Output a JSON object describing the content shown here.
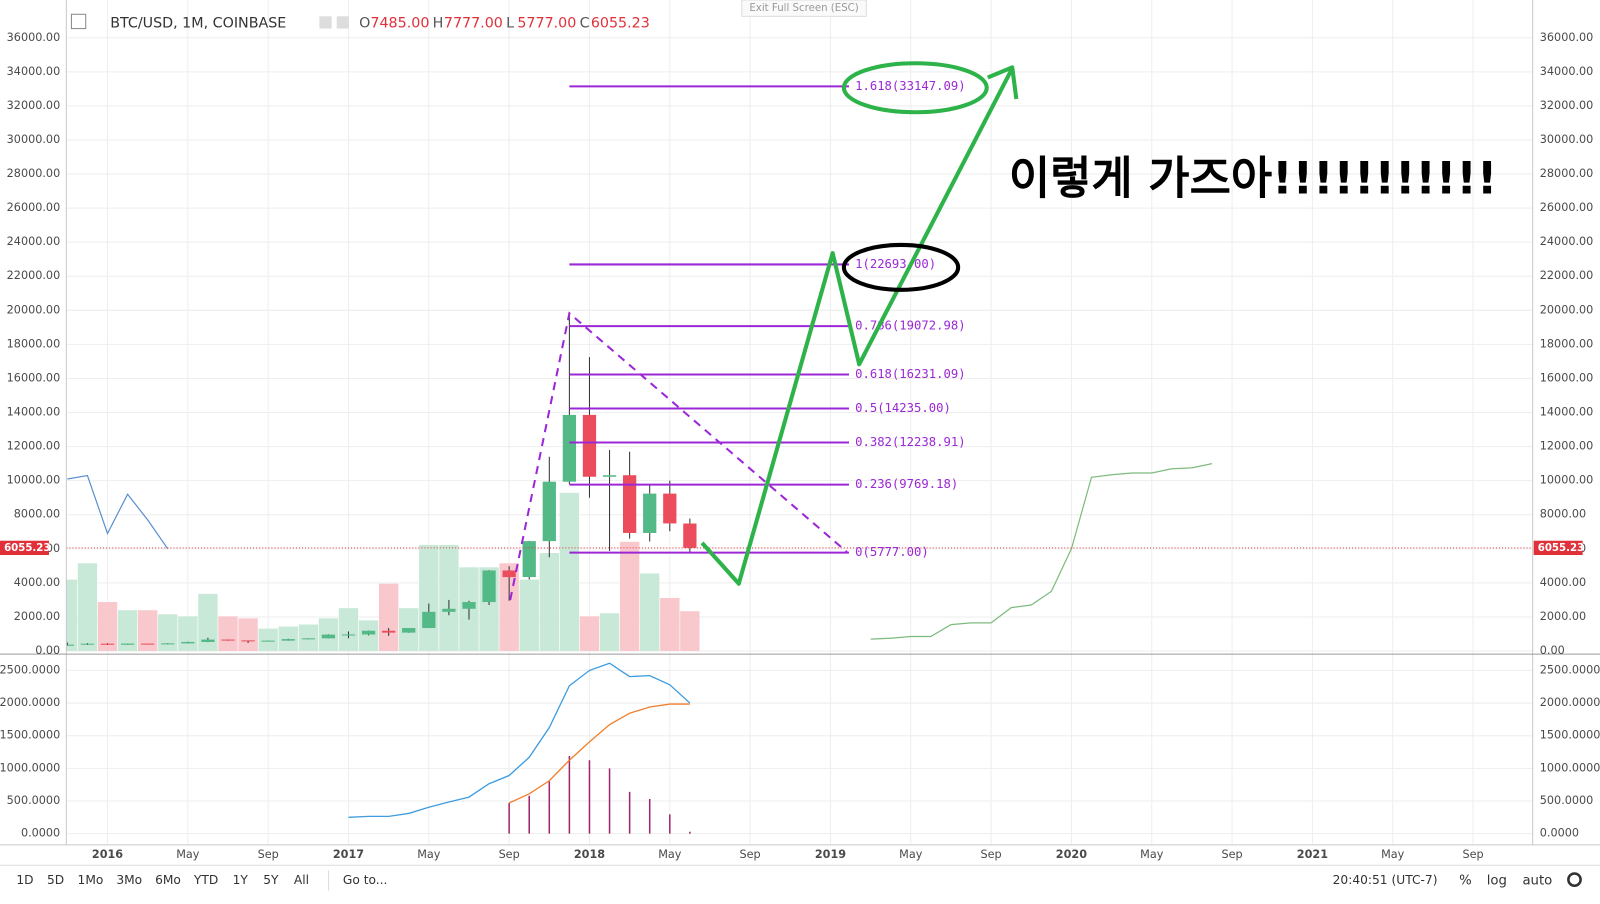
{
  "header": {
    "symbol": "BTC/USD, 1M, COINBASE",
    "ohlc": [
      {
        "key": "O",
        "value": "7485.00"
      },
      {
        "key": "H",
        "value": "7777.00"
      },
      {
        "key": "L",
        "value": "5777.00"
      },
      {
        "key": "C",
        "value": "6055.23"
      }
    ]
  },
  "exit_fullscreen": "Exit Full Screen (ESC)",
  "annotation": "이렇게 가즈아!!!!!!!!!!!",
  "time_axis_labels": [
    "2016",
    "May",
    "Sep",
    "2017",
    "May",
    "Sep",
    "2018",
    "May",
    "Sep",
    "2019",
    "May",
    "Sep",
    "2020",
    "May",
    "Sep",
    "2021",
    "May",
    "Sep"
  ],
  "toolbar": {
    "ranges": [
      "1D",
      "5D",
      "1Mo",
      "3Mo",
      "6Mo",
      "YTD",
      "1Y",
      "5Y",
      "All"
    ],
    "goto": "Go to...",
    "clock": "20:40:51 (UTC-7)",
    "options": [
      "%",
      "log",
      "auto"
    ]
  },
  "chart_data": [
    {
      "type": "candlestick",
      "up_color": "#53b987",
      "down_color": "#eb4d5c",
      "volume_up_color": "#c8e9d7",
      "volume_down_color": "#f9c8cd",
      "open": [
        310,
        377,
        430,
        368,
        437,
        416,
        448,
        531,
        673,
        624,
        575,
        609,
        700,
        745,
        964,
        970,
        1190,
        1080,
        1350,
        2300,
        2480,
        2875,
        4730,
        4340,
        6450,
        9940,
        13860,
        10230,
        10320,
        6930,
        9240,
        7485
      ],
      "high": [
        500,
        465,
        460,
        440,
        440,
        465,
        550,
        780,
        680,
        625,
        620,
        720,
        750,
        980,
        1150,
        1200,
        1350,
        1350,
        2790,
        3000,
        2950,
        4750,
        4980,
        6470,
        11400,
        19892,
        17250,
        11800,
        11700,
        9800,
        10000,
        7777
      ],
      "low": [
        310,
        350,
        350,
        365,
        400,
        410,
        440,
        520,
        600,
        470,
        590,
        605,
        690,
        740,
        750,
        920,
        890,
        1070,
        1350,
        2100,
        1840,
        2700,
        2950,
        4200,
        5500,
        9800,
        9000,
        5870,
        6600,
        6430,
        7030,
        5777
      ],
      "close": [
        377,
        430,
        368,
        437,
        416,
        448,
        531,
        673,
        624,
        575,
        609,
        700,
        745,
        964,
        970,
        1190,
        1080,
        1350,
        2300,
        2480,
        2875,
        4730,
        4340,
        6450,
        9940,
        13860,
        10230,
        10320,
        6930,
        9240,
        7490,
        6055
      ],
      "volume": [
        70,
        86,
        48,
        40,
        40,
        36,
        34,
        56,
        34,
        32,
        22,
        24,
        26,
        32,
        42,
        30,
        66,
        42,
        104,
        104,
        82,
        82,
        86,
        70,
        96,
        155,
        34,
        37,
        107,
        76,
        52,
        39
      ],
      "overlays": [
        {
          "color": "#5b8fd0",
          "values": [
            10100,
            10300,
            6900,
            9200,
            7700,
            6000
          ]
        },
        {
          "color": "#7dbb7d",
          "values": [
            null,
            null,
            null,
            null,
            null,
            null,
            null,
            null,
            null,
            null,
            null,
            null,
            null,
            null,
            null,
            null,
            null,
            null,
            null,
            null,
            null,
            null,
            null,
            null,
            null,
            null,
            null,
            null,
            null,
            null,
            null,
            null,
            null,
            null,
            null,
            null,
            null,
            null,
            null,
            null,
            700,
            750,
            850,
            850,
            1550,
            1650,
            1650,
            2550,
            2700,
            3500,
            6000,
            10200,
            10350,
            10450,
            10450,
            10700,
            10750,
            11000
          ]
        }
      ],
      "last_price": 6055.23,
      "last_price_color": "#e0303a",
      "fib_color": "#9c27d6",
      "fib_levels": [
        {
          "label": "1.618(33147.09)",
          "value": 33147.09
        },
        {
          "label": "1(22693.00)",
          "value": 22693.0
        },
        {
          "label": "0.786(19072.98)",
          "value": 19072.98
        },
        {
          "label": "0.618(16231.09)",
          "value": 16231.09
        },
        {
          "label": "0.5(14235.00)",
          "value": 14235.0
        },
        {
          "label": "0.382(12238.91)",
          "value": 12238.91
        },
        {
          "label": "0.236(9769.18)",
          "value": 9769.18
        },
        {
          "label": "0(5777.00)",
          "value": 5777.0
        }
      ],
      "ylim": [
        0,
        36000
      ],
      "yticks": [
        {
          "value": 0,
          "label": "0.00"
        },
        {
          "value": 2000,
          "label": "2000.00"
        },
        {
          "value": 4000,
          "label": "4000.00"
        },
        {
          "value": 6000,
          "label": "6000.00"
        },
        {
          "value": 8000,
          "label": "8000.00"
        },
        {
          "value": 10000,
          "label": "10000.00"
        },
        {
          "value": 12000,
          "label": "12000.00"
        },
        {
          "value": 14000,
          "label": "14000.00"
        },
        {
          "value": 16000,
          "label": "16000.00"
        },
        {
          "value": 18000,
          "label": "18000.00"
        },
        {
          "value": 20000,
          "label": "20000.00"
        },
        {
          "value": 22000,
          "label": "22000.00"
        },
        {
          "value": 24000,
          "label": "24000.00"
        },
        {
          "value": 26000,
          "label": "26000.00"
        },
        {
          "value": 28000,
          "label": "28000.00"
        },
        {
          "value": 30000,
          "label": "30000.00"
        },
        {
          "value": 32000,
          "label": "32000.00"
        },
        {
          "value": 34000,
          "label": "34000.00"
        },
        {
          "value": 36000,
          "label": "36000.00"
        }
      ],
      "grid": true
    },
    {
      "type": "line",
      "series": [
        {
          "color": "#3d9de0",
          "values": [
            null,
            null,
            null,
            null,
            null,
            null,
            null,
            null,
            null,
            null,
            null,
            null,
            null,
            null,
            250,
            265,
            265,
            310,
            405,
            485,
            560,
            765,
            890,
            1170,
            1625,
            2265,
            2500,
            2610,
            2405,
            2420,
            2280,
            2000
          ]
        },
        {
          "color": "#f07f2c",
          "values": [
            null,
            null,
            null,
            null,
            null,
            null,
            null,
            null,
            null,
            null,
            null,
            null,
            null,
            null,
            null,
            null,
            null,
            null,
            null,
            null,
            null,
            null,
            470,
            610,
            810,
            1125,
            1405,
            1670,
            1845,
            1940,
            1985,
            1985
          ]
        }
      ],
      "histogram": {
        "color": "#a0246e",
        "values": [
          null,
          null,
          null,
          null,
          null,
          null,
          null,
          null,
          null,
          null,
          null,
          null,
          null,
          null,
          null,
          null,
          null,
          null,
          null,
          null,
          null,
          null,
          470,
          580,
          800,
          1190,
          1125,
          1000,
          640,
          530,
          295,
          30
        ]
      },
      "ylim": [
        0,
        2500
      ],
      "yticks": [
        {
          "value": 0,
          "label": "0.0000"
        },
        {
          "value": 500,
          "label": "500.0000"
        },
        {
          "value": 1000,
          "label": "1000.0000"
        },
        {
          "value": 1500,
          "label": "1500.0000"
        },
        {
          "value": 2000,
          "label": "2000.0000"
        },
        {
          "value": 2500,
          "label": "2500.0000"
        }
      ],
      "grid": true
    }
  ]
}
